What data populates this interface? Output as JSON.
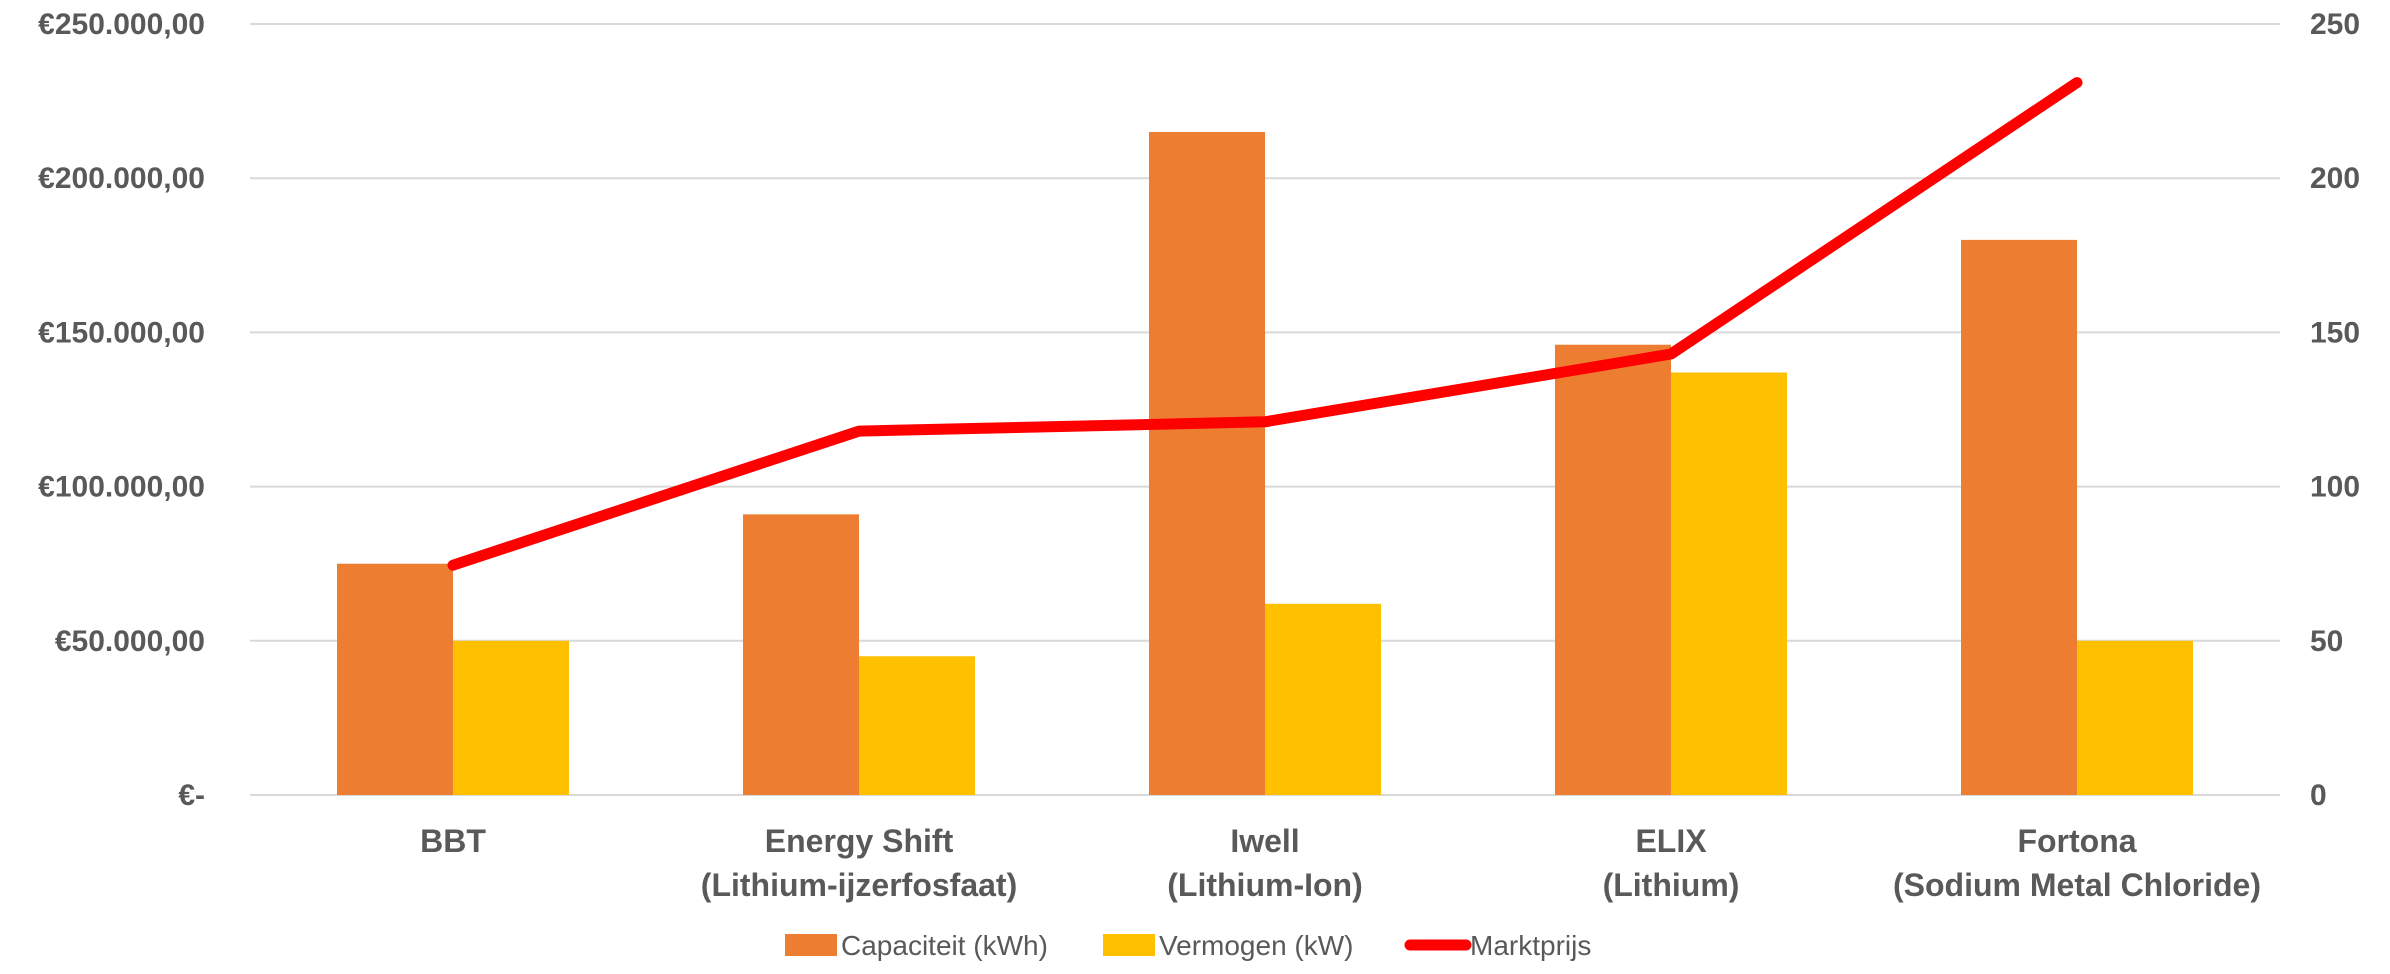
{
  "chart_data": {
    "type": "bar",
    "categories": [
      [
        "BBT"
      ],
      [
        "Energy Shift",
        "(Lithium-ijzerfosfaat)"
      ],
      [
        "Iwell",
        "(Lithium-Ion)"
      ],
      [
        "ELIX",
        "(Lithium)"
      ],
      [
        "Fortona",
        "(Sodium Metal Chloride)"
      ]
    ],
    "series": [
      {
        "name": "Capaciteit (kWh)",
        "kind": "bar",
        "axis": "right",
        "color": "#ED7D31",
        "values": [
          75,
          91,
          215,
          146,
          180
        ]
      },
      {
        "name": "Vermogen (kW)",
        "kind": "bar",
        "axis": "right",
        "color": "#FFC000",
        "values": [
          50,
          45,
          62,
          137,
          50
        ]
      },
      {
        "name": "Marktprijs",
        "kind": "line",
        "axis": "left",
        "color": "#FF0000",
        "values": [
          74500,
          118000,
          121000,
          143000,
          231000
        ]
      }
    ],
    "y_left": {
      "range": [
        0,
        250000
      ],
      "tick_labels": [
        "€-",
        "€50.000,00",
        "€100.000,00",
        "€150.000,00",
        "€200.000,00",
        "€250.000,00"
      ]
    },
    "y_right": {
      "range": [
        0,
        250
      ],
      "tick_labels": [
        "0",
        "50",
        "100",
        "150",
        "200",
        "250"
      ]
    },
    "grid": true,
    "legend": "bottom"
  }
}
